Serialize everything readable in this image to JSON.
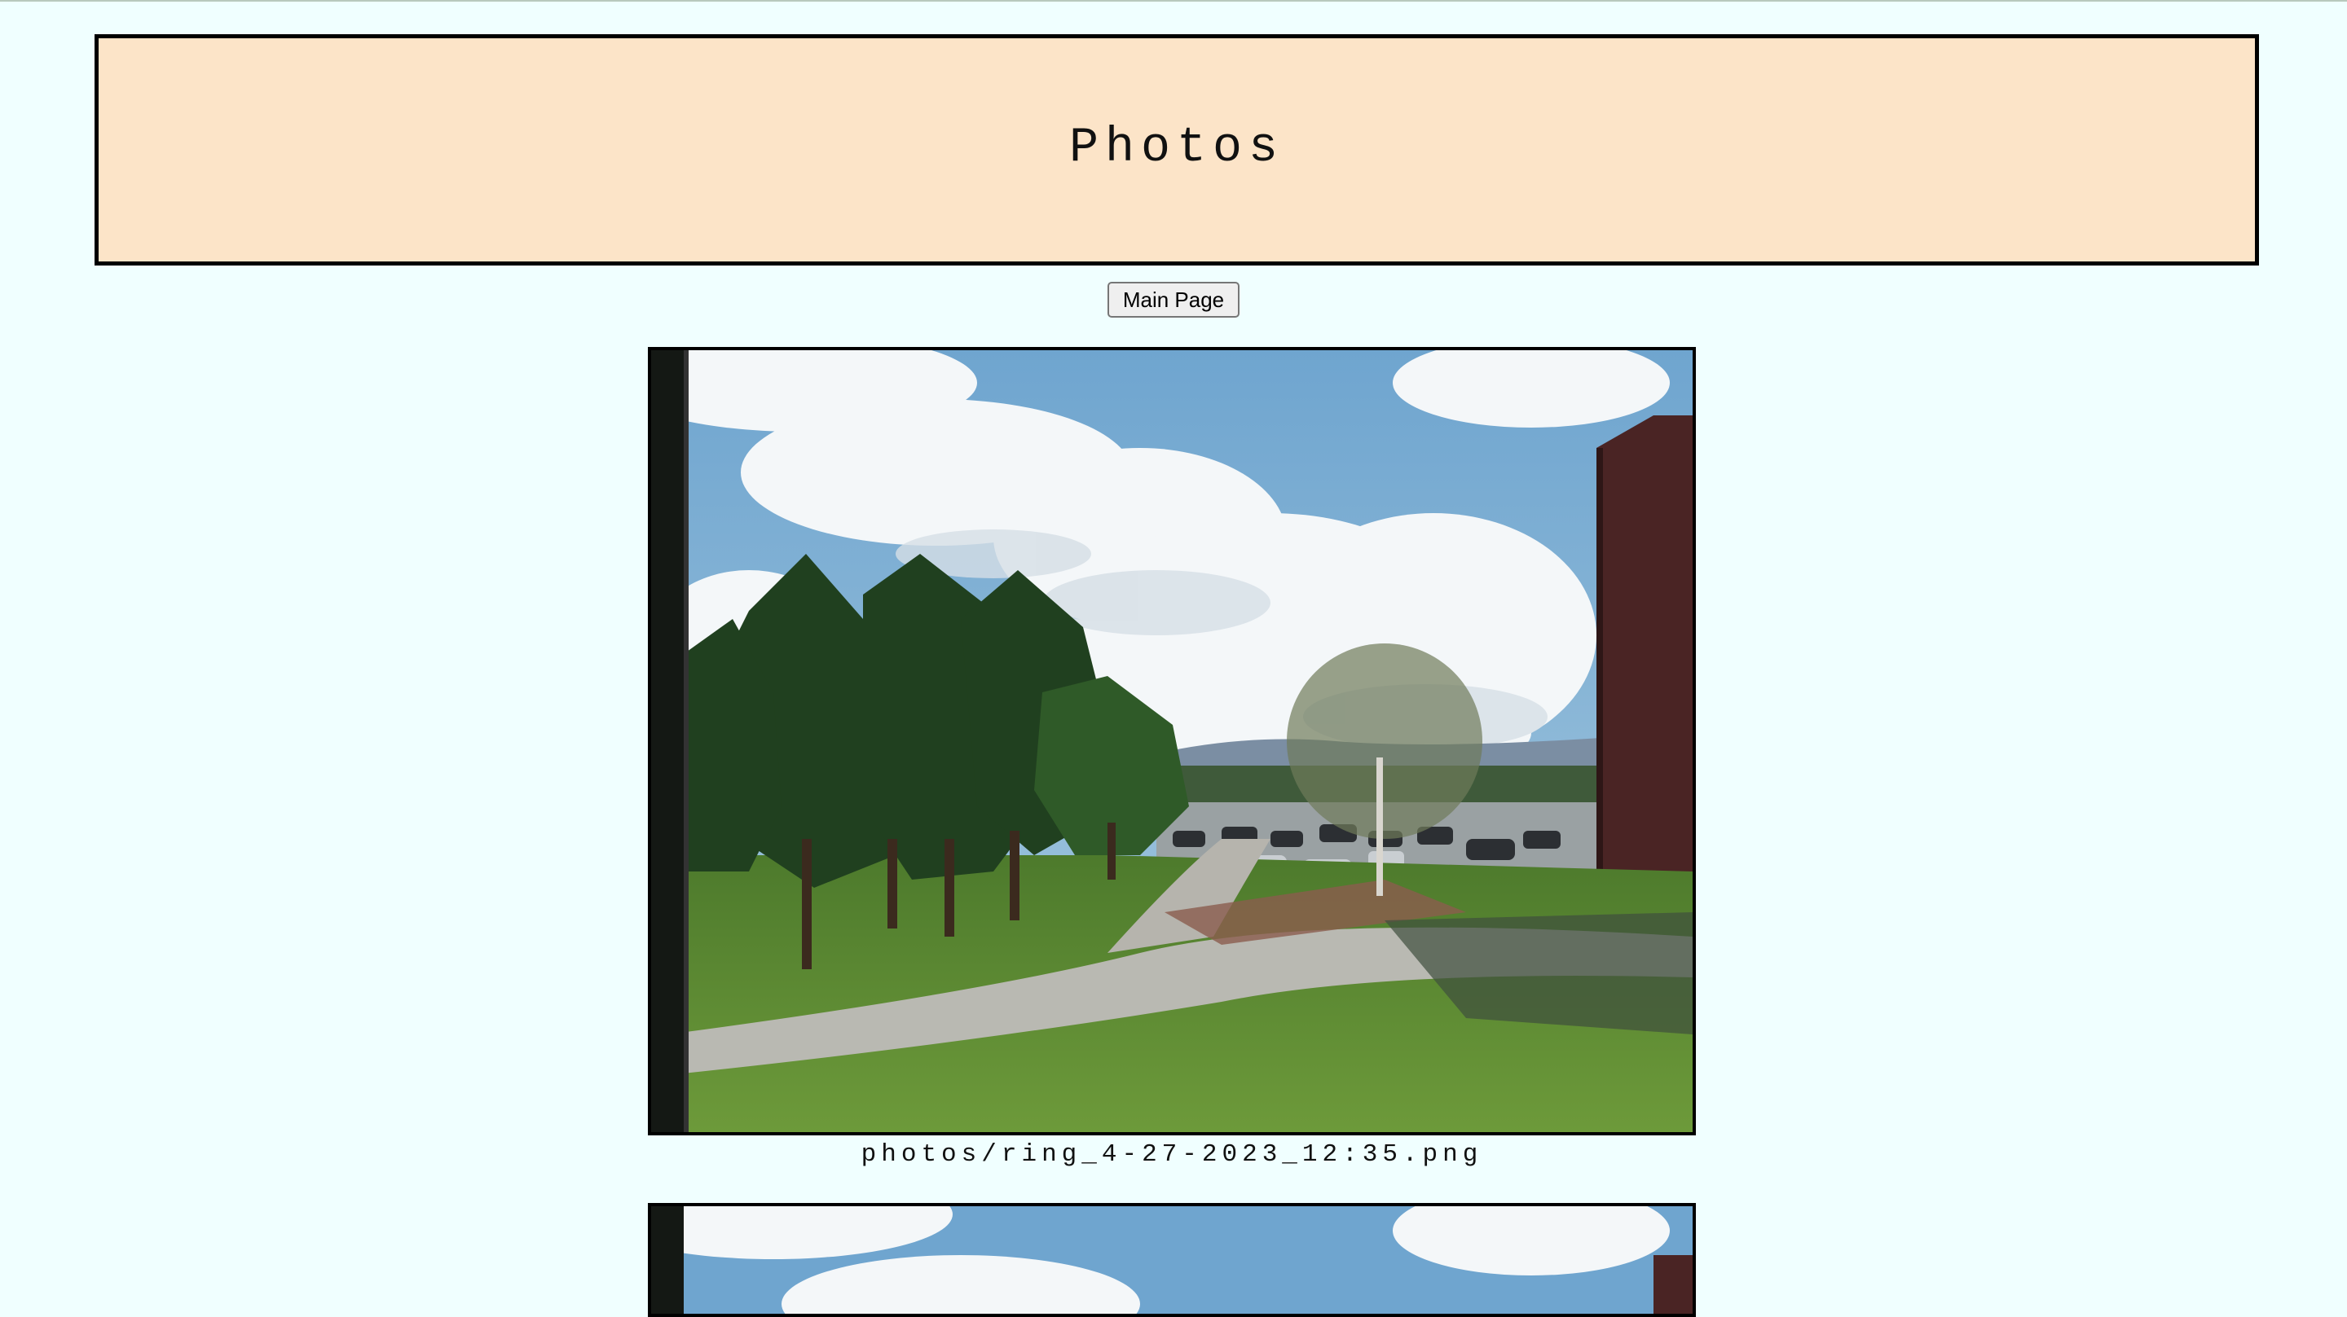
{
  "header": {
    "title": "Photos"
  },
  "nav": {
    "main_page_label": "Main Page"
  },
  "photos": [
    {
      "caption": "photos/ring_4-27-2023_12:35.png",
      "description_icon": "photo-image"
    },
    {
      "caption": "",
      "description_icon": "photo-image"
    }
  ],
  "colors": {
    "page_background": "#f0ffff",
    "header_background": "#fce4c8",
    "header_border": "#000000"
  }
}
